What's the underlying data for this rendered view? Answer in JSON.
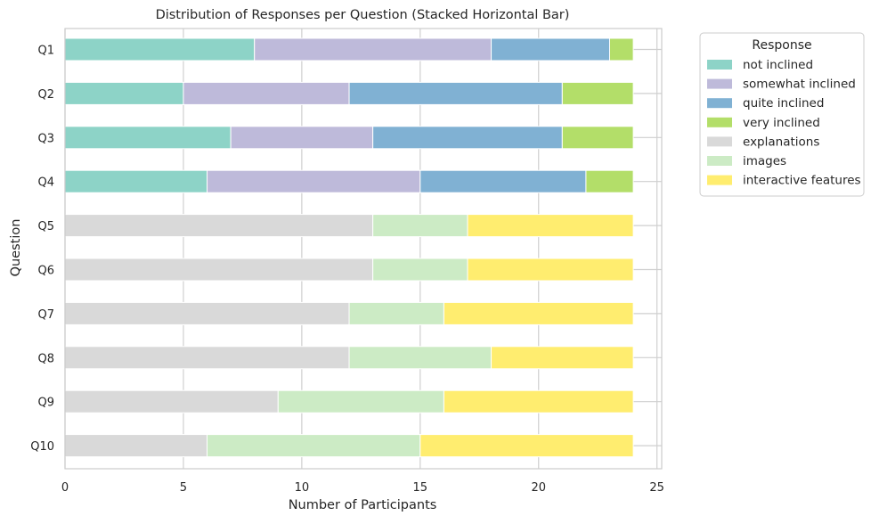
{
  "chart_data": {
    "type": "bar",
    "orientation": "horizontal",
    "stacked": true,
    "title": "Distribution of Responses per Question (Stacked Horizontal Bar)",
    "xlabel": "Number of Participants",
    "ylabel": "Question",
    "xlim": [
      0,
      25.2
    ],
    "xticks": [
      0,
      5,
      10,
      15,
      20,
      25
    ],
    "grid": true,
    "legend_title": "Response",
    "legend_position": "outside-right",
    "categories": [
      "Q1",
      "Q2",
      "Q3",
      "Q4",
      "Q5",
      "Q6",
      "Q7",
      "Q8",
      "Q9",
      "Q10"
    ],
    "series": [
      {
        "name": "not inclined",
        "color": "#8dd3c7",
        "values": [
          8,
          5,
          7,
          6,
          0,
          0,
          0,
          0,
          0,
          0
        ]
      },
      {
        "name": "somewhat inclined",
        "color": "#bebada",
        "values": [
          10,
          7,
          6,
          9,
          0,
          0,
          0,
          0,
          0,
          0
        ]
      },
      {
        "name": "quite inclined",
        "color": "#80b1d3",
        "values": [
          5,
          9,
          8,
          7,
          0,
          0,
          0,
          0,
          0,
          0
        ]
      },
      {
        "name": "very inclined",
        "color": "#b3de69",
        "values": [
          1,
          3,
          3,
          2,
          0,
          0,
          0,
          0,
          0,
          0
        ]
      },
      {
        "name": "explanations",
        "color": "#d9d9d9",
        "values": [
          0,
          0,
          0,
          0,
          13,
          13,
          12,
          12,
          9,
          6
        ]
      },
      {
        "name": "images",
        "color": "#ccebc5",
        "values": [
          0,
          0,
          0,
          0,
          4,
          4,
          4,
          6,
          7,
          9
        ]
      },
      {
        "name": "interactive features",
        "color": "#ffed6f",
        "values": [
          0,
          0,
          0,
          0,
          7,
          7,
          8,
          6,
          8,
          9
        ]
      }
    ]
  }
}
